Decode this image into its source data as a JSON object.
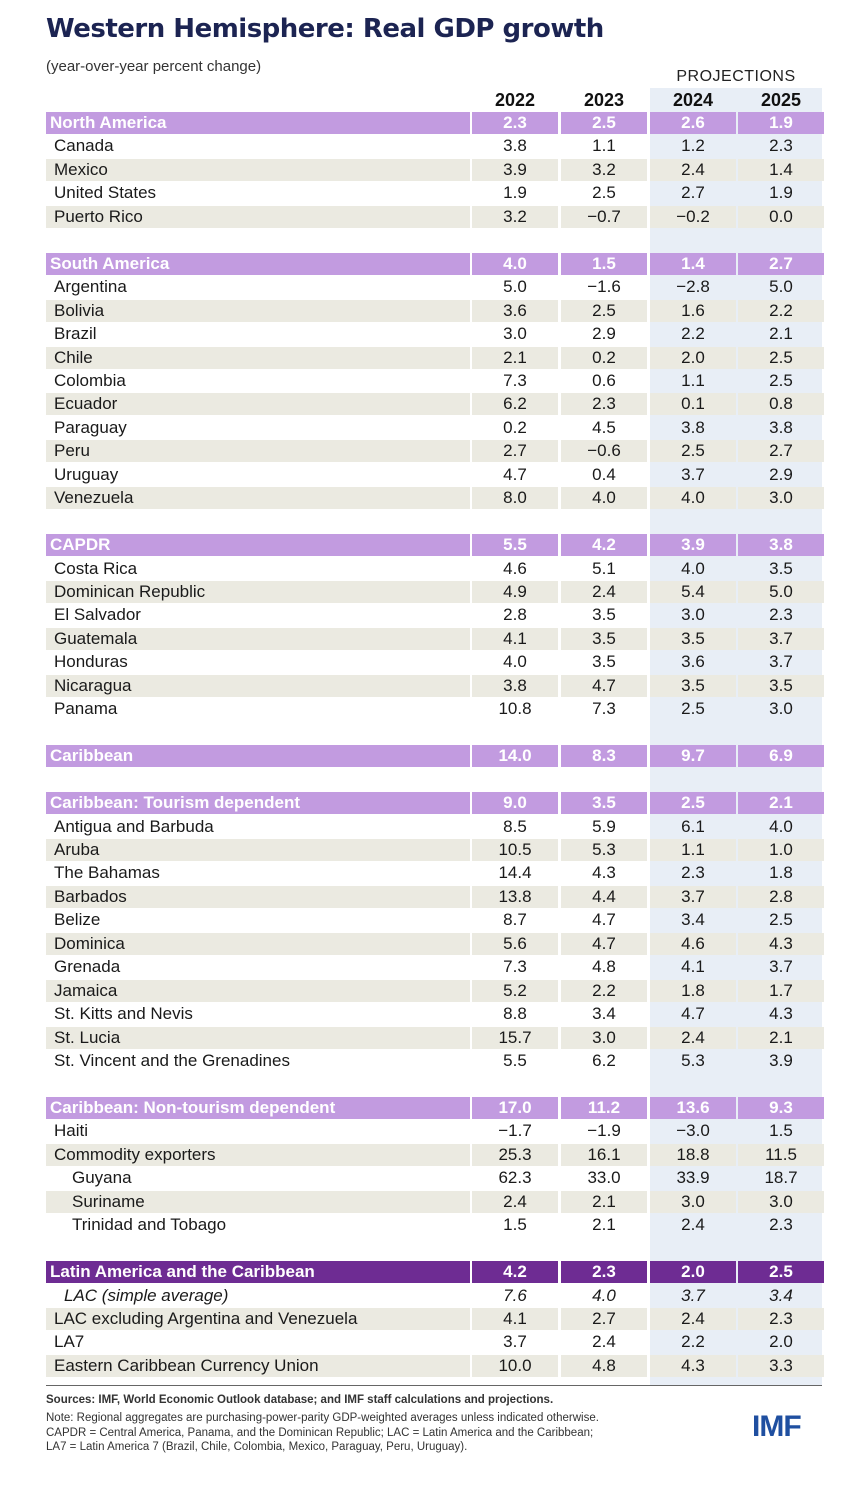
{
  "title": "Western Hemisphere: Real GDP growth",
  "subtitle": "(year-over-year percent change)",
  "projections_label": "PROJECTIONS",
  "years": [
    "2022",
    "2023",
    "2024",
    "2025"
  ],
  "rows": [
    {
      "label": "North America",
      "type": "group",
      "values": [
        "2.3",
        "2.5",
        "2.6",
        "1.9"
      ]
    },
    {
      "label": "Canada",
      "values": [
        "3.8",
        "1.1",
        "1.2",
        "2.3"
      ]
    },
    {
      "label": "Mexico",
      "values": [
        "3.9",
        "3.2",
        "2.4",
        "1.4"
      ]
    },
    {
      "label": "United States",
      "values": [
        "1.9",
        "2.5",
        "2.7",
        "1.9"
      ]
    },
    {
      "label": "Puerto Rico",
      "values": [
        "3.2",
        "-0.7",
        "-0.2",
        "0.0"
      ]
    },
    {
      "type": "gap"
    },
    {
      "label": "South America",
      "type": "group",
      "values": [
        "4.0",
        "1.5",
        "1.4",
        "2.7"
      ]
    },
    {
      "label": "Argentina",
      "values": [
        "5.0",
        "-1.6",
        "-2.8",
        "5.0"
      ]
    },
    {
      "label": "Bolivia",
      "values": [
        "3.6",
        "2.5",
        "1.6",
        "2.2"
      ]
    },
    {
      "label": "Brazil",
      "values": [
        "3.0",
        "2.9",
        "2.2",
        "2.1"
      ]
    },
    {
      "label": "Chile",
      "values": [
        "2.1",
        "0.2",
        "2.0",
        "2.5"
      ]
    },
    {
      "label": "Colombia",
      "values": [
        "7.3",
        "0.6",
        "1.1",
        "2.5"
      ]
    },
    {
      "label": "Ecuador",
      "values": [
        "6.2",
        "2.3",
        "0.1",
        "0.8"
      ]
    },
    {
      "label": "Paraguay",
      "values": [
        "0.2",
        "4.5",
        "3.8",
        "3.8"
      ]
    },
    {
      "label": "Peru",
      "values": [
        "2.7",
        "-0.6",
        "2.5",
        "2.7"
      ]
    },
    {
      "label": "Uruguay",
      "values": [
        "4.7",
        "0.4",
        "3.7",
        "2.9"
      ]
    },
    {
      "label": "Venezuela",
      "values": [
        "8.0",
        "4.0",
        "4.0",
        "3.0"
      ]
    },
    {
      "type": "gap"
    },
    {
      "label": "CAPDR",
      "type": "group",
      "values": [
        "5.5",
        "4.2",
        "3.9",
        "3.8"
      ]
    },
    {
      "label": "Costa Rica",
      "values": [
        "4.6",
        "5.1",
        "4.0",
        "3.5"
      ]
    },
    {
      "label": "Dominican Republic",
      "values": [
        "4.9",
        "2.4",
        "5.4",
        "5.0"
      ]
    },
    {
      "label": "El Salvador",
      "values": [
        "2.8",
        "3.5",
        "3.0",
        "2.3"
      ]
    },
    {
      "label": "Guatemala",
      "values": [
        "4.1",
        "3.5",
        "3.5",
        "3.7"
      ]
    },
    {
      "label": "Honduras",
      "values": [
        "4.0",
        "3.5",
        "3.6",
        "3.7"
      ]
    },
    {
      "label": "Nicaragua",
      "values": [
        "3.8",
        "4.7",
        "3.5",
        "3.5"
      ]
    },
    {
      "label": "Panama",
      "values": [
        "10.8",
        "7.3",
        "2.5",
        "3.0"
      ]
    },
    {
      "type": "gap"
    },
    {
      "label": "Caribbean",
      "type": "group",
      "values": [
        "14.0",
        "8.3",
        "9.7",
        "6.9"
      ]
    },
    {
      "type": "gap"
    },
    {
      "label": "Caribbean: Tourism dependent",
      "type": "group",
      "values": [
        "9.0",
        "3.5",
        "2.5",
        "2.1"
      ]
    },
    {
      "label": "Antigua and Barbuda",
      "values": [
        "8.5",
        "5.9",
        "6.1",
        "4.0"
      ]
    },
    {
      "label": "Aruba",
      "values": [
        "10.5",
        "5.3",
        "1.1",
        "1.0"
      ]
    },
    {
      "label": "The Bahamas",
      "values": [
        "14.4",
        "4.3",
        "2.3",
        "1.8"
      ]
    },
    {
      "label": "Barbados",
      "values": [
        "13.8",
        "4.4",
        "3.7",
        "2.8"
      ]
    },
    {
      "label": "Belize",
      "values": [
        "8.7",
        "4.7",
        "3.4",
        "2.5"
      ]
    },
    {
      "label": "Dominica",
      "values": [
        "5.6",
        "4.7",
        "4.6",
        "4.3"
      ]
    },
    {
      "label": "Grenada",
      "values": [
        "7.3",
        "4.8",
        "4.1",
        "3.7"
      ]
    },
    {
      "label": "Jamaica",
      "values": [
        "5.2",
        "2.2",
        "1.8",
        "1.7"
      ]
    },
    {
      "label": "St. Kitts and Nevis",
      "values": [
        "8.8",
        "3.4",
        "4.7",
        "4.3"
      ]
    },
    {
      "label": "St. Lucia",
      "values": [
        "15.7",
        "3.0",
        "2.4",
        "2.1"
      ]
    },
    {
      "label": "St. Vincent and the Grenadines",
      "values": [
        "5.5",
        "6.2",
        "5.3",
        "3.9"
      ]
    },
    {
      "type": "gap"
    },
    {
      "label": "Caribbean: Non-tourism dependent",
      "type": "group",
      "values": [
        "17.0",
        "11.2",
        "13.6",
        "9.3"
      ]
    },
    {
      "label": "Haiti",
      "values": [
        "-1.7",
        "-1.9",
        "-3.0",
        "1.5"
      ]
    },
    {
      "label": "Commodity exporters",
      "values": [
        "25.3",
        "16.1",
        "18.8",
        "11.5"
      ]
    },
    {
      "label": "Guyana",
      "type": "sub",
      "values": [
        "62.3",
        "33.0",
        "33.9",
        "18.7"
      ]
    },
    {
      "label": "Suriname",
      "type": "sub",
      "values": [
        "2.4",
        "2.1",
        "3.0",
        "3.0"
      ]
    },
    {
      "label": "Trinidad and Tobago",
      "type": "sub",
      "values": [
        "1.5",
        "2.1",
        "2.4",
        "2.3"
      ]
    },
    {
      "type": "gap"
    },
    {
      "label": "Latin America and the Caribbean",
      "type": "lac",
      "values": [
        "4.2",
        "2.3",
        "2.0",
        "2.5"
      ]
    },
    {
      "label": "LAC (simple average)",
      "type": "ital",
      "values": [
        "7.6",
        "4.0",
        "3.7",
        "3.4"
      ]
    },
    {
      "label": "LAC excluding Argentina and Venezuela",
      "values": [
        "4.1",
        "2.7",
        "2.4",
        "2.3"
      ]
    },
    {
      "label": "LA7",
      "values": [
        "3.7",
        "2.4",
        "2.2",
        "2.0"
      ]
    },
    {
      "label": "Eastern Caribbean Currency Union",
      "values": [
        "10.0",
        "4.8",
        "4.3",
        "3.3"
      ]
    }
  ],
  "sources": "Sources: IMF, World Economic Outlook database; and IMF staff calculations and projections.",
  "notes": [
    "Note: Regional aggregates are purchasing-power-parity GDP-weighted averages unless indicated otherwise.",
    "CAPDR = Central America, Panama, and the Dominican Republic; LAC = Latin America and the Caribbean;",
    "LA7 = Latin America 7 (Brazil, Chile, Colombia, Mexico, Paraguay, Peru, Uruguay)."
  ],
  "logo": "IMF",
  "colors": {
    "title": "#1c2452",
    "group_bar": "#c29be0",
    "lac_bar": "#6e2c93",
    "stripe": "#ebeae1",
    "projection_bg": "#e8eef6",
    "logo": "#1f4fa0"
  }
}
